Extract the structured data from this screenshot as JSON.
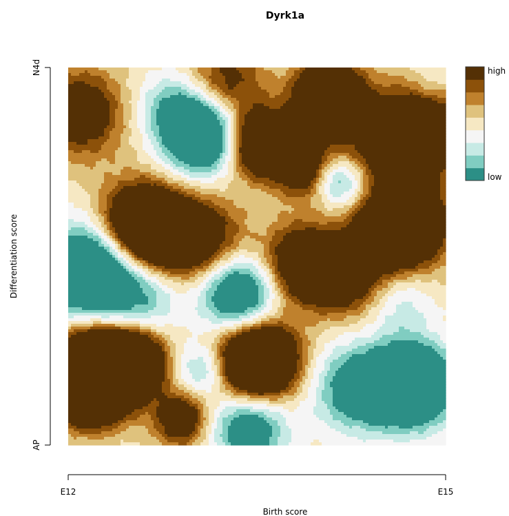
{
  "chart_data": {
    "type": "heatmap",
    "title": "Dyrk1a",
    "xlabel": "Birth score",
    "ylabel": "Differentiation score",
    "x_tick_labels": [
      "E12",
      "E15"
    ],
    "y_tick_labels": [
      "AP",
      "N4d"
    ],
    "xlim": [
      0,
      1
    ],
    "ylim": [
      0,
      1
    ],
    "legend": {
      "position": "right",
      "high_label": "high",
      "low_label": "low"
    },
    "colorscale": [
      "#2c8f86",
      "#80cdc1",
      "#c7eae5",
      "#f5f5f5",
      "#f6e8c3",
      "#dfc27d",
      "#bf812d",
      "#8c510a",
      "#543005"
    ],
    "levels": [
      -1.0,
      -0.72,
      -0.44,
      -0.16,
      0.1,
      0.33,
      0.55,
      0.78
    ],
    "sources": [
      {
        "x": 0.08,
        "y": 0.2,
        "amp": 3.4,
        "sigma": 0.075
      },
      {
        "x": 0.18,
        "y": 0.22,
        "amp": 1.8,
        "sigma": 0.055
      },
      {
        "x": 0.05,
        "y": 0.13,
        "amp": 1.2,
        "sigma": 0.06
      },
      {
        "x": 0.3,
        "y": 0.07,
        "amp": 1.4,
        "sigma": 0.05
      },
      {
        "x": 0.5,
        "y": 0.22,
        "amp": 2.8,
        "sigma": 0.075
      },
      {
        "x": 0.2,
        "y": 0.57,
        "amp": 2.6,
        "sigma": 0.08
      },
      {
        "x": 0.35,
        "y": 0.54,
        "amp": 1.3,
        "sigma": 0.08
      },
      {
        "x": 0.62,
        "y": 0.48,
        "amp": 1.7,
        "sigma": 0.07
      },
      {
        "x": 0.74,
        "y": 0.44,
        "amp": 1.2,
        "sigma": 0.07
      },
      {
        "x": 0.88,
        "y": 0.58,
        "amp": 2.4,
        "sigma": 0.08
      },
      {
        "x": 0.51,
        "y": 0.8,
        "amp": 2.2,
        "sigma": 0.06
      },
      {
        "x": 0.63,
        "y": 0.73,
        "amp": 1.3,
        "sigma": 0.055
      },
      {
        "x": 0.69,
        "y": 0.92,
        "amp": 2.8,
        "sigma": 0.06
      },
      {
        "x": 0.84,
        "y": 0.77,
        "amp": 1.0,
        "sigma": 0.09
      },
      {
        "x": 0.95,
        "y": 0.86,
        "amp": 1.2,
        "sigma": 0.09
      },
      {
        "x": 0.03,
        "y": 0.88,
        "amp": 1.3,
        "sigma": 0.08
      },
      {
        "x": 0.42,
        "y": 0.96,
        "amp": 1.0,
        "sigma": 0.07
      },
      {
        "x": 0.06,
        "y": 0.46,
        "amp": -2.6,
        "sigma": 0.085
      },
      {
        "x": 0.35,
        "y": 0.82,
        "amp": -2.4,
        "sigma": 0.07
      },
      {
        "x": 0.45,
        "y": 0.4,
        "amp": -2.0,
        "sigma": 0.07
      },
      {
        "x": 0.91,
        "y": 0.16,
        "amp": -2.8,
        "sigma": 0.075
      },
      {
        "x": 0.76,
        "y": 0.15,
        "amp": -1.4,
        "sigma": 0.08
      },
      {
        "x": 0.48,
        "y": 0.05,
        "amp": -1.6,
        "sigma": 0.07
      },
      {
        "x": 0.36,
        "y": 0.2,
        "amp": -1.0,
        "sigma": 0.05
      },
      {
        "x": 0.71,
        "y": 0.7,
        "amp": -1.2,
        "sigma": 0.045
      },
      {
        "x": 0.2,
        "y": 0.4,
        "amp": -0.9,
        "sigma": 0.07
      },
      {
        "x": 0.27,
        "y": 0.9,
        "amp": -0.8,
        "sigma": 0.06
      },
      {
        "x": 0.97,
        "y": 0.97,
        "amp": -0.6,
        "sigma": 0.05
      },
      {
        "x": 0.88,
        "y": 0.38,
        "amp": -0.6,
        "sigma": 0.06
      },
      {
        "x": 0.78,
        "y": 0.68,
        "amp": -0.5,
        "sigma": 0.05
      }
    ]
  }
}
